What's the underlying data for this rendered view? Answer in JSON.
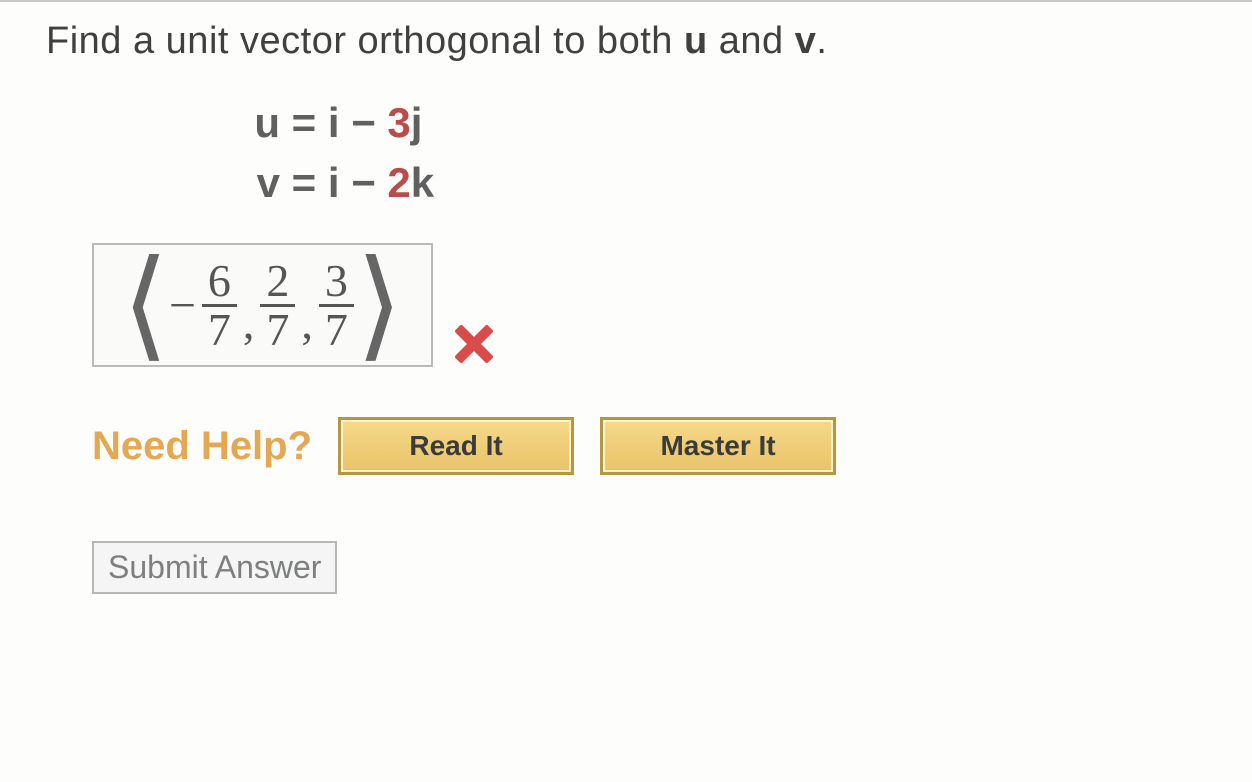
{
  "question": {
    "prompt_pre": "Find a unit vector orthogonal to both ",
    "u_label": "u",
    "mid": " and ",
    "v_label": "v",
    "period": "."
  },
  "equations": {
    "u": {
      "var": "u",
      "rhs_pre": "i",
      "op": "−",
      "coef": "3",
      "basis": "j"
    },
    "v": {
      "var": "v",
      "rhs_pre": "i",
      "op": "−",
      "coef": "2",
      "basis": "k"
    }
  },
  "answer": {
    "sign": "−",
    "terms": [
      {
        "num": "6",
        "den": "7"
      },
      {
        "num": "2",
        "den": "7"
      },
      {
        "num": "3",
        "den": "7"
      }
    ],
    "correct": false
  },
  "help": {
    "label": "Need Help?",
    "read": "Read It",
    "master": "Master It"
  },
  "submit": {
    "label": "Submit Answer"
  },
  "colors": {
    "coef_color": "#b94c4c",
    "help_label_color": "#e4a853",
    "btn_bg_top": "#f6d989",
    "btn_bg_bot": "#e9c368",
    "border_gray": "#b9bbbb",
    "x_color": "#d84c4c"
  }
}
